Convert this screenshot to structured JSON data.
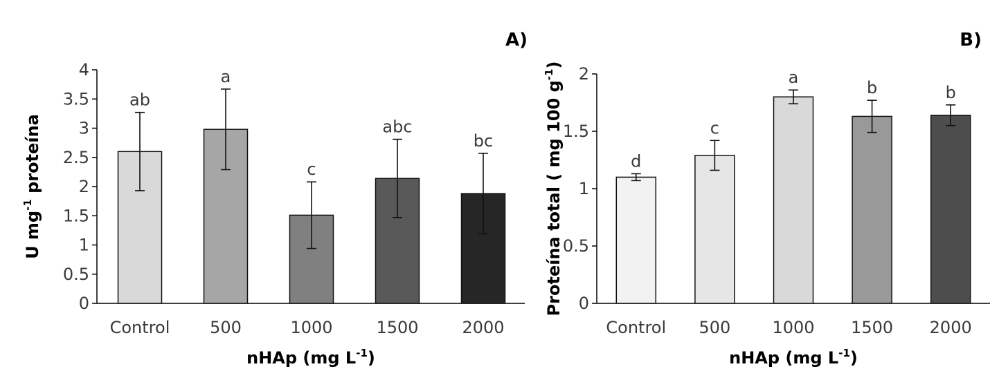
{
  "chart_data": [
    {
      "type": "bar",
      "panel_label": "A)",
      "categories": [
        "Control",
        "500",
        "1000",
        "1500",
        "2000"
      ],
      "values": [
        2.6,
        2.98,
        1.51,
        2.14,
        1.88
      ],
      "errors": [
        0.67,
        0.69,
        0.57,
        0.67,
        0.69
      ],
      "significance": [
        "ab",
        "a",
        "c",
        "abc",
        "bc"
      ],
      "bar_colors": [
        "#d9d9d9",
        "#a6a6a6",
        "#808080",
        "#595959",
        "#262626"
      ],
      "ylim": [
        0,
        4
      ],
      "yticks": [
        0,
        0.5,
        1,
        1.5,
        2,
        2.5,
        3,
        3.5,
        4
      ],
      "ytick_labels": [
        "0",
        "0.5",
        "1",
        "1.5",
        "2",
        "2.5",
        "3",
        "3.5",
        "4"
      ],
      "ylabel": "U mg",
      "ylabel_sup": "-1",
      "ylabel_after": " proteína",
      "xlabel": "nHAp (mg L",
      "xlabel_sup": "-1",
      "xlabel_after": ")"
    },
    {
      "type": "bar",
      "panel_label": "B)",
      "categories": [
        "Control",
        "500",
        "1000",
        "1500",
        "2000"
      ],
      "values": [
        1.1,
        1.29,
        1.8,
        1.63,
        1.64
      ],
      "errors": [
        0.03,
        0.13,
        0.06,
        0.14,
        0.09
      ],
      "significance": [
        "d",
        "c",
        "a",
        "b",
        "b"
      ],
      "bar_colors": [
        "#f2f2f2",
        "#e6e6e6",
        "#d9d9d9",
        "#999999",
        "#4d4d4d"
      ],
      "ylim": [
        0,
        2
      ],
      "yticks": [
        0,
        0.5,
        1,
        1.5,
        2
      ],
      "ytick_labels": [
        "0",
        "0.5",
        "1",
        "1.5",
        "2"
      ],
      "ylabel": "Proteína total ( mg 100 g",
      "ylabel_sup": "-1",
      "ylabel_after": ")",
      "xlabel": "nHAp (mg L",
      "xlabel_sup": "-1",
      "xlabel_after": ")"
    }
  ]
}
